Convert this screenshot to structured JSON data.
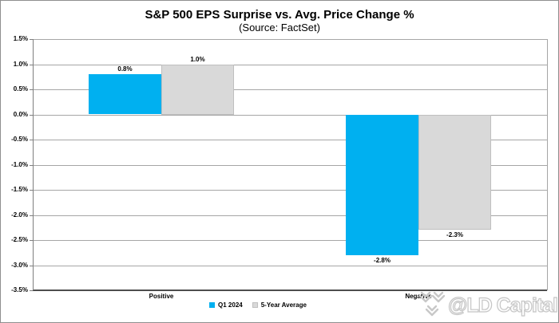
{
  "page": {
    "title": "S&P 500 EPS Surprise vs. Avg. Price Change %",
    "subtitle": "(Source: FactSet)"
  },
  "watermark": {
    "handle": "@LD Capital",
    "logo": "chevrons-logo"
  },
  "colors": {
    "q1_2024": "#00B0F0",
    "five_year_avg": "#D9D9D9",
    "five_year_avg_border": "#BFBFBF",
    "gridline": "#A6A6A6",
    "axis": "#7F7F7F",
    "axis_bottom": "#4D4D4D",
    "outer_border": "#8F8F8F",
    "watermark": "#C8C8C8"
  },
  "chart_data": {
    "type": "bar",
    "title": "S&P 500 EPS Surprise vs. Avg. Price Change %",
    "subtitle": "(Source: FactSet)",
    "categories": [
      "Positive",
      "Negative"
    ],
    "series": [
      {
        "name": "Q1 2024",
        "values": [
          0.8,
          -2.8
        ],
        "data_labels": [
          "0.8%",
          "-2.8%"
        ],
        "color": "#00B0F0"
      },
      {
        "name": "5-Year Average",
        "values": [
          1.0,
          -2.3
        ],
        "data_labels": [
          "1.0%",
          "-2.3%"
        ],
        "color": "#D9D9D9"
      }
    ],
    "ylim": [
      -3.5,
      1.5
    ],
    "y_tick_step": 0.5,
    "y_tick_labels": [
      "1.5%",
      "1.0%",
      "0.5%",
      "0.0%",
      "-0.5%",
      "-1.0%",
      "-1.5%",
      "-2.0%",
      "-2.5%",
      "-3.0%",
      "-3.5%"
    ],
    "grid": true,
    "legend_position": "bottom"
  }
}
